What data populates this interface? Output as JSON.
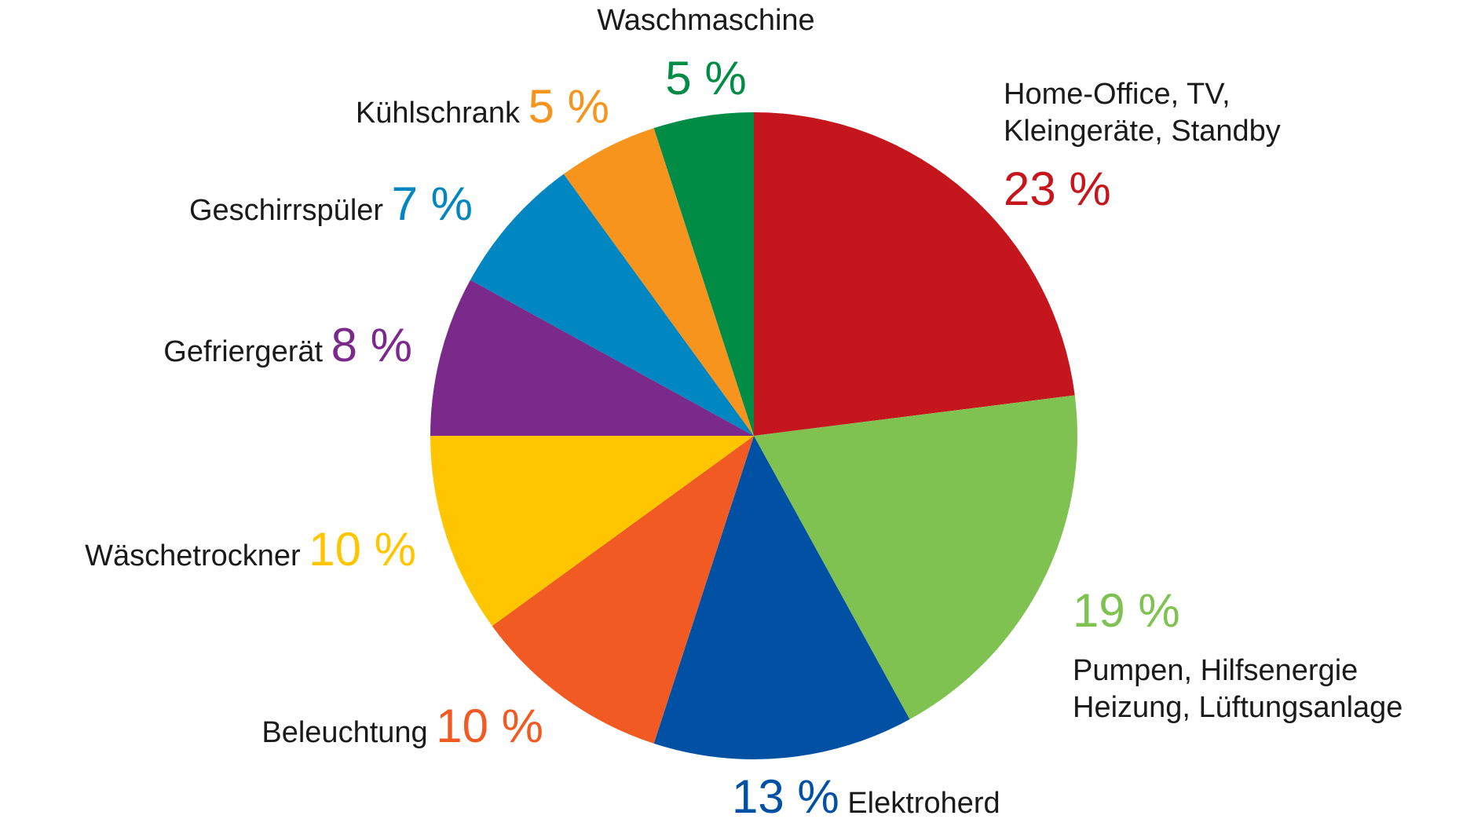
{
  "chart_data": {
    "type": "pie",
    "title": "",
    "slices": [
      {
        "id": "homeoffice",
        "label_lines": [
          "Home-Office, TV,",
          "Kleingeräte, Standby"
        ],
        "value": 23,
        "pct_text": "23 %",
        "color": "#c4161c"
      },
      {
        "id": "pumpen",
        "label_lines": [
          "Pumpen, Hilfsenergie",
          "Heizung, Lüftungsanlage"
        ],
        "value": 19,
        "pct_text": "19 %",
        "color": "#80c252"
      },
      {
        "id": "elektroherd",
        "label_lines": [
          "Elektroherd"
        ],
        "value": 13,
        "pct_text": "13 %",
        "color": "#0051a3"
      },
      {
        "id": "beleuchtung",
        "label_lines": [
          "Beleuchtung"
        ],
        "value": 10,
        "pct_text": "10 %",
        "color": "#f15a22"
      },
      {
        "id": "waeschetrockner",
        "label_lines": [
          "Wäschetrockner"
        ],
        "value": 10,
        "pct_text": "10 %",
        "color": "#ffc600"
      },
      {
        "id": "gefriergeraet",
        "label_lines": [
          "Gefriergerät"
        ],
        "value": 8,
        "pct_text": "8 %",
        "color": "#7b2a8c"
      },
      {
        "id": "geschirrspueler",
        "label_lines": [
          "Geschirrspüler"
        ],
        "value": 7,
        "pct_text": "7 %",
        "color": "#0086c1"
      },
      {
        "id": "kuehlschrank",
        "label_lines": [
          "Kühlschrank"
        ],
        "value": 5,
        "pct_text": "5 %",
        "color": "#f7941d"
      },
      {
        "id": "waschmaschine",
        "label_lines": [
          "Waschmaschine"
        ],
        "value": 5,
        "pct_text": "5 %",
        "color": "#008c45"
      }
    ]
  }
}
